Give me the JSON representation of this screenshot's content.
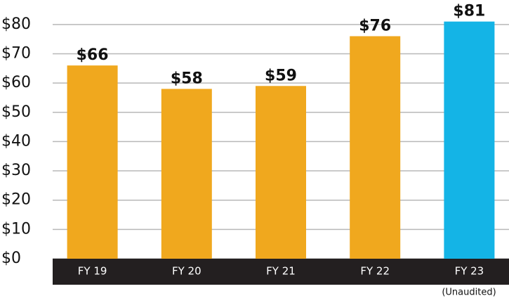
{
  "chart_data": {
    "type": "bar",
    "categories": [
      "FY 19",
      "FY 20",
      "FY 21",
      "FY 22",
      "FY 23"
    ],
    "values": [
      66,
      58,
      59,
      76,
      81
    ],
    "value_labels": [
      "$66",
      "$58",
      "$59",
      "$76",
      "$81"
    ],
    "colors": [
      "#f0a81e",
      "#f0a81e",
      "#f0a81e",
      "#f0a81e",
      "#14b4e6"
    ],
    "annotation": "(Unaudited)",
    "ylim": [
      0,
      85
    ],
    "yticks": [
      {
        "value": 0,
        "label": "$0"
      },
      {
        "value": 10,
        "label": "$10"
      },
      {
        "value": 20,
        "label": "$20"
      },
      {
        "value": 30,
        "label": "$30"
      },
      {
        "value": 40,
        "label": "$40"
      },
      {
        "value": 50,
        "label": "$50"
      },
      {
        "value": 60,
        "label": "$60"
      },
      {
        "value": 70,
        "label": "$70"
      },
      {
        "value": 80,
        "label": "$80"
      }
    ],
    "grid": true
  }
}
